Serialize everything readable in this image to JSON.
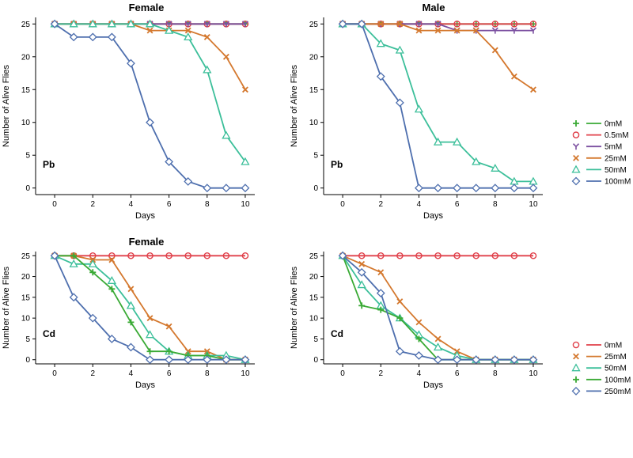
{
  "series_colors": {
    "green": "#3aaa35",
    "red": "#e0404a",
    "purple": "#7b4fa0",
    "orange": "#d4782e",
    "teal": "#3cbf9a",
    "blue": "#4e6fae"
  },
  "legends": [
    {
      "entries": [
        {
          "label": "0mM",
          "color": "green",
          "marker": "plus"
        },
        {
          "label": "0.5mM",
          "color": "red",
          "marker": "circle"
        },
        {
          "label": "5mM",
          "color": "purple",
          "marker": "tri-down"
        },
        {
          "label": "25mM",
          "color": "orange",
          "marker": "x"
        },
        {
          "label": "50mM",
          "color": "teal",
          "marker": "triangle"
        },
        {
          "label": "100mM",
          "color": "blue",
          "marker": "diamond"
        }
      ]
    },
    {
      "entries": [
        {
          "label": "0mM",
          "color": "red",
          "marker": "circle"
        },
        {
          "label": "25mM",
          "color": "orange",
          "marker": "x"
        },
        {
          "label": "50mM",
          "color": "teal",
          "marker": "triangle"
        },
        {
          "label": "100mM",
          "color": "green",
          "marker": "plus"
        },
        {
          "label": "250mM",
          "color": "blue",
          "marker": "diamond"
        }
      ]
    }
  ],
  "chart_data": [
    {
      "type": "line",
      "title": "Female",
      "metal": "Pb",
      "xlabel": "Days",
      "ylabel": "Number of Alive Flies",
      "xlim": [
        -1,
        10.5
      ],
      "ylim": [
        -1,
        26
      ],
      "xticks": [
        "0",
        "2",
        "4",
        "6",
        "8",
        "10"
      ],
      "yticks": [
        "0",
        "5",
        "10",
        "15",
        "20",
        "25"
      ],
      "x": [
        0,
        1,
        2,
        3,
        4,
        5,
        6,
        7,
        8,
        9,
        10
      ],
      "series": [
        {
          "name": "0mM",
          "color": "green",
          "marker": "plus",
          "values": [
            25,
            25,
            25,
            25,
            25,
            25,
            25,
            25,
            25,
            25,
            25
          ]
        },
        {
          "name": "0.5mM",
          "color": "red",
          "marker": "circle",
          "values": [
            25,
            25,
            25,
            25,
            25,
            25,
            25,
            25,
            25,
            25,
            25
          ]
        },
        {
          "name": "5mM",
          "color": "purple",
          "marker": "tri-down",
          "values": [
            25,
            25,
            25,
            25,
            25,
            25,
            25,
            25,
            25,
            25,
            25
          ]
        },
        {
          "name": "25mM",
          "color": "orange",
          "marker": "x",
          "values": [
            25,
            25,
            25,
            25,
            25,
            24,
            24,
            24,
            23,
            20,
            15
          ]
        },
        {
          "name": "50mM",
          "color": "teal",
          "marker": "triangle",
          "values": [
            25,
            25,
            25,
            25,
            25,
            25,
            24,
            23,
            18,
            8,
            4
          ]
        },
        {
          "name": "100mM",
          "color": "blue",
          "marker": "diamond",
          "values": [
            25,
            23,
            23,
            23,
            19,
            10,
            4,
            1,
            0,
            0,
            0
          ]
        }
      ]
    },
    {
      "type": "line",
      "title": "Male",
      "metal": "Pb",
      "xlabel": "Days",
      "ylabel": "Number of Alive Flies",
      "xlim": [
        -1,
        10.5
      ],
      "ylim": [
        -1,
        26
      ],
      "xticks": [
        "0",
        "2",
        "4",
        "6",
        "8",
        "10"
      ],
      "yticks": [
        "0",
        "5",
        "10",
        "15",
        "20",
        "25"
      ],
      "x": [
        0,
        1,
        2,
        3,
        4,
        5,
        6,
        7,
        8,
        9,
        10
      ],
      "series": [
        {
          "name": "0mM",
          "color": "green",
          "marker": "plus",
          "values": [
            25,
            25,
            25,
            25,
            25,
            25,
            25,
            25,
            25,
            25,
            25
          ]
        },
        {
          "name": "0.5mM",
          "color": "red",
          "marker": "circle",
          "values": [
            25,
            25,
            25,
            25,
            25,
            25,
            25,
            25,
            25,
            25,
            25
          ]
        },
        {
          "name": "5mM",
          "color": "purple",
          "marker": "tri-down",
          "values": [
            25,
            25,
            25,
            25,
            25,
            25,
            24,
            24,
            24,
            24,
            24
          ]
        },
        {
          "name": "25mM",
          "color": "orange",
          "marker": "x",
          "values": [
            25,
            25,
            25,
            25,
            24,
            24,
            24,
            24,
            21,
            17,
            15
          ]
        },
        {
          "name": "50mM",
          "color": "teal",
          "marker": "triangle",
          "values": [
            25,
            25,
            22,
            21,
            12,
            7,
            7,
            4,
            3,
            1,
            1
          ]
        },
        {
          "name": "100mM",
          "color": "blue",
          "marker": "diamond",
          "values": [
            25,
            25,
            17,
            13,
            0,
            0,
            0,
            0,
            0,
            0,
            0
          ]
        }
      ]
    },
    {
      "type": "line",
      "title": "Female",
      "metal": "Cd",
      "xlabel": "Days",
      "ylabel": "Number of Alive Flies",
      "xlim": [
        -1,
        10.5
      ],
      "ylim": [
        -1,
        26
      ],
      "xticks": [
        "0",
        "2",
        "4",
        "6",
        "8",
        "10"
      ],
      "yticks": [
        "0",
        "5",
        "10",
        "15",
        "20",
        "25"
      ],
      "x": [
        0,
        1,
        2,
        3,
        4,
        5,
        6,
        7,
        8,
        9,
        10
      ],
      "series": [
        {
          "name": "0mM",
          "color": "red",
          "marker": "circle",
          "values": [
            25,
            25,
            25,
            25,
            25,
            25,
            25,
            25,
            25,
            25,
            25
          ]
        },
        {
          "name": "25mM",
          "color": "orange",
          "marker": "x",
          "values": [
            25,
            25,
            24,
            24,
            17,
            10,
            8,
            2,
            2,
            0,
            0
          ]
        },
        {
          "name": "50mM",
          "color": "teal",
          "marker": "triangle",
          "values": [
            25,
            23,
            23,
            19,
            13,
            6,
            2,
            1,
            1,
            1,
            0
          ]
        },
        {
          "name": "100mM",
          "color": "green",
          "marker": "plus",
          "values": [
            25,
            25,
            21,
            17,
            9,
            2,
            2,
            1,
            1,
            0,
            0
          ]
        },
        {
          "name": "250mM",
          "color": "blue",
          "marker": "diamond",
          "values": [
            25,
            15,
            10,
            5,
            3,
            0,
            0,
            0,
            0,
            0,
            0
          ]
        }
      ]
    },
    {
      "type": "line",
      "title": "",
      "metal": "Cd",
      "xlabel": "Days",
      "ylabel": "Number of Alive Flies",
      "xlim": [
        -1,
        10.5
      ],
      "ylim": [
        -1,
        26
      ],
      "xticks": [
        "0",
        "2",
        "4",
        "6",
        "8",
        "10"
      ],
      "yticks": [
        "0",
        "5",
        "10",
        "15",
        "20",
        "25"
      ],
      "x": [
        0,
        1,
        2,
        3,
        4,
        5,
        6,
        7,
        8,
        9,
        10
      ],
      "series": [
        {
          "name": "0mM",
          "color": "red",
          "marker": "circle",
          "values": [
            25,
            25,
            25,
            25,
            25,
            25,
            25,
            25,
            25,
            25,
            25
          ]
        },
        {
          "name": "25mM",
          "color": "orange",
          "marker": "x",
          "values": [
            25,
            23,
            21,
            14,
            9,
            5,
            2,
            0,
            0,
            0,
            0
          ]
        },
        {
          "name": "50mM",
          "color": "teal",
          "marker": "triangle",
          "values": [
            25,
            18,
            13,
            10,
            6,
            3,
            1,
            0,
            0,
            0,
            0
          ]
        },
        {
          "name": "100mM",
          "color": "green",
          "marker": "plus",
          "values": [
            25,
            13,
            12,
            10,
            5,
            0,
            0,
            0,
            0,
            0,
            0
          ]
        },
        {
          "name": "250mM",
          "color": "blue",
          "marker": "diamond",
          "values": [
            25,
            21,
            16,
            2,
            1,
            0,
            0,
            0,
            0,
            0,
            0
          ]
        }
      ]
    }
  ]
}
